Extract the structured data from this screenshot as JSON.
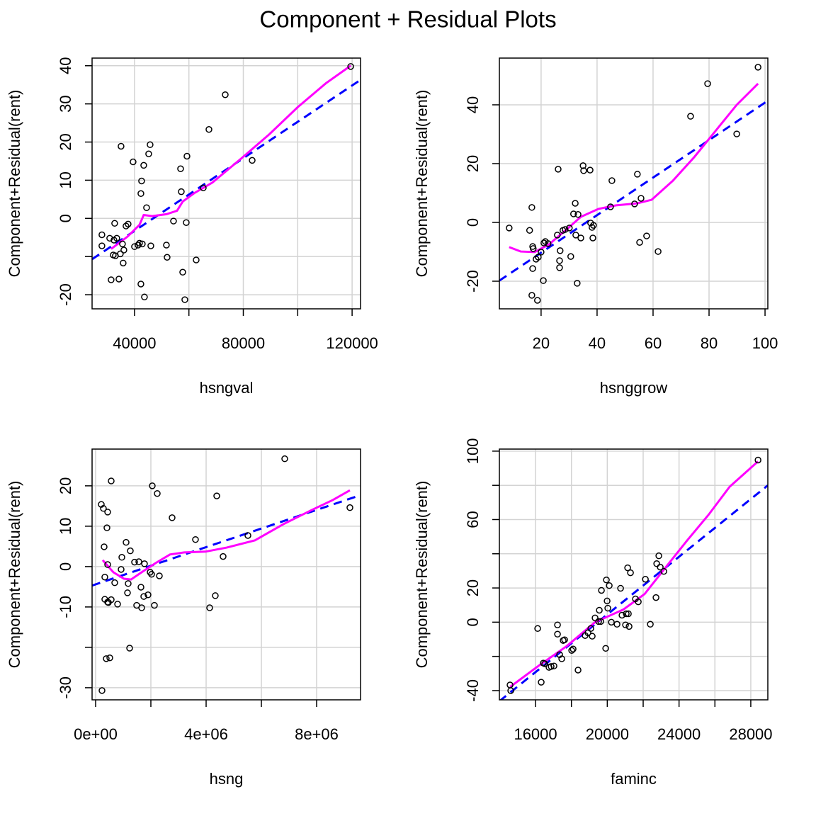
{
  "title": "Component + Residual Plots",
  "chart_data": [
    {
      "type": "scatter",
      "xlabel": "hsngval",
      "ylabel": "Component+Residual(rent)",
      "xlim": [
        24400,
        123100
      ],
      "ylim": [
        -23.7,
        42.0
      ],
      "xticks": [
        40000,
        80000,
        120000
      ],
      "xticks_minor": [
        60000,
        100000
      ],
      "yticks": [
        -20,
        0,
        10,
        20,
        30,
        40
      ],
      "yticks_minor": [
        -10
      ],
      "grid": true,
      "color": "#000000",
      "x": [
        28012,
        28012,
        30879,
        31400,
        32703,
        32442,
        32182,
        33485,
        32964,
        34788,
        34267,
        35049,
        35570,
        35830,
        36091,
        36873,
        37655,
        39479,
        40000,
        41303,
        41824,
        42345,
        42606,
        42345,
        42867,
        43388,
        43648,
        44430,
        45212,
        45733,
        45994,
        51727,
        51988,
        54333,
        56939,
        57200,
        57721,
        58503,
        59024,
        59285,
        62672,
        65278,
        67363,
        73357,
        83260,
        119483
      ],
      "values": [
        -4.3,
        -7.2,
        -5.2,
        -16.1,
        -1.3,
        -5.7,
        -9.6,
        -5.2,
        -9.8,
        -9.3,
        -15.9,
        18.9,
        -6.7,
        -11.7,
        -8.3,
        -2.0,
        -1.5,
        14.8,
        -7.4,
        -7.0,
        -6.5,
        -17.2,
        9.8,
        6.5,
        -6.7,
        13.9,
        -20.6,
        2.8,
        16.9,
        19.3,
        -7.2,
        -7.0,
        -10.2,
        -0.7,
        13.0,
        7.0,
        -14.1,
        -21.3,
        -1.1,
        16.3,
        -10.9,
        8.0,
        23.3,
        32.4,
        15.2,
        39.8
      ],
      "fit_line": {
        "color": "#0000ff",
        "dashed": true,
        "x": [
          24400,
          123100
        ],
        "values": [
          -10.7,
          36.3
        ]
      },
      "smooth_line": {
        "color": "#ff00ff",
        "dashed": false,
        "x": [
          31400,
          37394,
          41824,
          43388,
          46515,
          51727,
          55636,
          57721,
          62151,
          68666,
          79090,
          89514,
          99938,
          110362,
          119483
        ],
        "values": [
          -8.0,
          -4.8,
          -1.7,
          0.9,
          0.6,
          1.1,
          2.0,
          4.4,
          6.7,
          9.4,
          15.6,
          22.0,
          29.1,
          35.4,
          40.0
        ]
      }
    },
    {
      "type": "scatter",
      "xlabel": "hsnggrow",
      "ylabel": "Component+Residual(rent)",
      "xlim": [
        5.1,
        101
      ],
      "ylim": [
        -29.4,
        55.9
      ],
      "xticks": [
        20,
        40,
        60,
        80,
        100
      ],
      "xticks_minor": [],
      "yticks": [
        -20,
        0,
        20,
        40
      ],
      "yticks_minor": [],
      "grid": true,
      "color": "#000000",
      "x": [
        8.6,
        15.9,
        16.7,
        16.7,
        17.0,
        17.0,
        17.2,
        18.2,
        18.7,
        19.0,
        20.0,
        20.8,
        21.0,
        21.5,
        22.5,
        26.1,
        25.8,
        26.6,
        26.6,
        26.8,
        27.8,
        28.6,
        30.1,
        30.6,
        31.6,
        32.2,
        32.4,
        32.9,
        33.2,
        34.2,
        35.0,
        35.2,
        37.5,
        37.7,
        38.5,
        38.7,
        38.2,
        45.3,
        44.8,
        53.4,
        54.4,
        55.2,
        55.7,
        57.7,
        61.8,
        73.4,
        79.5,
        89.9,
        97.5
      ],
      "values": [
        -1.9,
        -2.7,
        5.1,
        -24.8,
        -15.7,
        -8.2,
        -8.9,
        -12.5,
        -26.5,
        -11.8,
        -10.1,
        -19.8,
        -7.0,
        -6.5,
        -7.2,
        18.1,
        -4.3,
        -13.0,
        -15.4,
        -9.6,
        -2.7,
        -2.4,
        -1.9,
        -11.6,
        2.9,
        6.5,
        -4.3,
        -20.7,
        2.7,
        -5.3,
        19.3,
        17.6,
        17.8,
        -0.2,
        -5.3,
        -1.0,
        -1.7,
        14.2,
        5.3,
        6.3,
        16.4,
        -6.8,
        8.2,
        -4.6,
        -9.9,
        36.1,
        47.2,
        30.1,
        52.8
      ],
      "fit_line": {
        "color": "#0000ff",
        "dashed": true,
        "x": [
          5.1,
          101
        ],
        "values": [
          -19.8,
          41.4
        ]
      },
      "smooth_line": {
        "color": "#ff00ff",
        "dashed": false,
        "x": [
          8.6,
          12.7,
          17.7,
          22.8,
          29.1,
          34.2,
          40.5,
          46.8,
          54.4,
          59.5,
          67.1,
          74.7,
          82.3,
          89.9,
          97.5
        ],
        "values": [
          -8.4,
          -9.9,
          -10.1,
          -7.5,
          -2.4,
          1.9,
          4.6,
          5.8,
          6.5,
          7.7,
          14.2,
          22.2,
          31.1,
          40.0,
          47.2
        ]
      }
    },
    {
      "type": "scatter",
      "xlabel": "hsng",
      "ylabel": "Component+Residual(rent)",
      "xlim": [
        -128000,
        9590000
      ],
      "ylim": [
        -33.0,
        29.1
      ],
      "xticks": [
        {
          "value": 0,
          "label": "0e+00"
        },
        {
          "value": 4000000,
          "label": "4e+06"
        },
        {
          "value": 8000000,
          "label": "8e+06"
        }
      ],
      "xticks_minor": [
        2000000,
        6000000
      ],
      "yticks": [
        -30,
        -10,
        0,
        10,
        20
      ],
      "yticks_minor": [
        -20
      ],
      "grid": true,
      "color": "#000000",
      "x": [
        205000,
        282000,
        308000,
        333000,
        333000,
        436000,
        410000,
        436000,
        436000,
        385000,
        462000,
        513000,
        564000,
        564000,
        692000,
        795000,
        923000,
        949000,
        1103000,
        1154000,
        1179000,
        1256000,
        1231000,
        1410000,
        1487000,
        1564000,
        1641000,
        1667000,
        1744000,
        1769000,
        1897000,
        1974000,
        2051000,
        2026000,
        2128000,
        2231000,
        2308000,
        2769000,
        3615000,
        4128000,
        4333000,
        4385000,
        4615000,
        5513000,
        6846000,
        9205000,
        231000
      ],
      "values": [
        15.4,
        14.4,
        4.9,
        -2.6,
        -8.1,
        13.5,
        9.6,
        0.5,
        -8.8,
        -22.8,
        -8.9,
        -22.6,
        21.2,
        -8.2,
        -4.0,
        -9.3,
        -0.7,
        2.3,
        6.0,
        -6.5,
        -4.2,
        3.9,
        -20.2,
        1.1,
        -9.6,
        1.2,
        -5.1,
        -10.2,
        -7.4,
        0.7,
        -7.0,
        -1.4,
        20.0,
        -1.9,
        -9.6,
        18.1,
        -2.3,
        12.1,
        6.7,
        -10.2,
        -7.2,
        17.5,
        2.5,
        7.7,
        26.7,
        14.6,
        -30.7
      ],
      "fit_line": {
        "color": "#0000ff",
        "dashed": true,
        "x": [
          -128000,
          9590000
        ],
        "values": [
          -4.7,
          17.7
        ]
      },
      "smooth_line": {
        "color": "#ff00ff",
        "dashed": false,
        "x": [
          256000,
          641000,
          1026000,
          1282000,
          1667000,
          2179000,
          2692000,
          3205000,
          3974000,
          4744000,
          5769000,
          6795000,
          7821000,
          8590000,
          9205000
        ],
        "values": [
          1.6,
          -1.4,
          -3.0,
          -3.2,
          -1.4,
          0.9,
          3.0,
          3.5,
          3.7,
          4.7,
          6.5,
          10.5,
          14.0,
          16.5,
          18.9
        ]
      }
    },
    {
      "type": "scatter",
      "xlabel": "faminc",
      "ylabel": "Component+Residual(rent)",
      "xlim": [
        13984,
        28950
      ],
      "ylim": [
        -45.4,
        101.2
      ],
      "xticks": [
        16000,
        20000,
        24000,
        28000
      ],
      "xticks_minor": [
        18000,
        22000,
        26000
      ],
      "yticks": [
        -40,
        0,
        20,
        60,
        100
      ],
      "yticks_minor": [
        -20,
        40,
        80
      ],
      "grid": true,
      "color": "#000000",
      "x": [
        14578,
        14618,
        16119,
        16316,
        16435,
        16514,
        16751,
        16869,
        17027,
        17225,
        17225,
        17343,
        17462,
        17541,
        17620,
        18015,
        18094,
        18370,
        18765,
        18923,
        19081,
        19160,
        19318,
        19516,
        19555,
        19674,
        19911,
        19950,
        19990,
        20029,
        20108,
        20227,
        20543,
        20740,
        20819,
        21017,
        21056,
        21175,
        21135,
        21214,
        21293,
        21570,
        21728,
        22123,
        22399,
        22715,
        22755,
        22873,
        22952,
        23150,
        28403,
        19634
      ],
      "values": [
        -36.7,
        -40.0,
        -3.7,
        -35.1,
        -23.9,
        -24.3,
        -26.4,
        -25.9,
        -25.6,
        -7.0,
        -1.6,
        -19.0,
        -21.4,
        -10.7,
        -10.3,
        -16.5,
        -15.7,
        -28.0,
        -7.8,
        -6.2,
        -3.7,
        -8.2,
        2.5,
        0.4,
        7.0,
        18.6,
        -15.3,
        24.7,
        12.4,
        8.2,
        21.4,
        0.0,
        -1.2,
        19.8,
        4.1,
        -1.6,
        4.9,
        4.9,
        31.8,
        -2.5,
        28.9,
        13.6,
        11.9,
        25.1,
        -1.2,
        14.4,
        34.2,
        38.8,
        32.2,
        29.7,
        94.8,
        0.4
      ],
      "fit_line": {
        "color": "#0000ff",
        "dashed": true,
        "x": [
          13984,
          28950
        ],
        "values": [
          -46.2,
          80.0
        ]
      },
      "smooth_line": {
        "color": "#ff00ff",
        "dashed": false,
        "x": [
          14578,
          16158,
          17738,
          19318,
          20898,
          22083,
          23268,
          24453,
          25638,
          26823,
          28403
        ],
        "values": [
          -37.9,
          -25.6,
          -14.0,
          0,
          7.4,
          16.5,
          32.2,
          47.8,
          62.7,
          79.2,
          94.0
        ]
      }
    }
  ]
}
